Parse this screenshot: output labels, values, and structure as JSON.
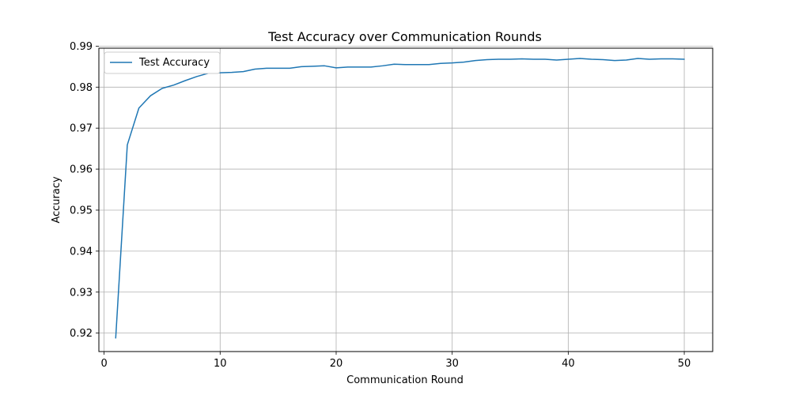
{
  "chart_data": {
    "type": "line",
    "title": "Test Accuracy over Communication Rounds",
    "xlabel": "Communication Round",
    "ylabel": "Accuracy",
    "xlim": [
      -0.45,
      52.45
    ],
    "ylim": [
      0.9155,
      0.9895
    ],
    "xticks": [
      0,
      10,
      20,
      30,
      40,
      50
    ],
    "yticks": [
      0.92,
      0.93,
      0.94,
      0.95,
      0.96,
      0.97,
      0.98,
      0.99
    ],
    "ytick_labels": [
      "0.92",
      "0.93",
      "0.94",
      "0.95",
      "0.96",
      "0.97",
      "0.98",
      "0.99"
    ],
    "grid": true,
    "legend_position": "upper-left",
    "color": "#1f77b4",
    "series": [
      {
        "name": "Test Accuracy",
        "x": [
          1,
          2,
          3,
          4,
          5,
          6,
          7,
          8,
          9,
          10,
          11,
          12,
          13,
          14,
          15,
          16,
          17,
          18,
          19,
          20,
          21,
          22,
          23,
          24,
          25,
          26,
          27,
          28,
          29,
          30,
          31,
          32,
          33,
          34,
          35,
          36,
          37,
          38,
          39,
          40,
          41,
          42,
          43,
          44,
          45,
          46,
          47,
          48,
          49,
          50
        ],
        "y": [
          0.9188,
          0.9659,
          0.9749,
          0.9779,
          0.9797,
          0.9805,
          0.9816,
          0.9826,
          0.9834,
          0.9835,
          0.9836,
          0.9838,
          0.9844,
          0.9846,
          0.9846,
          0.9846,
          0.985,
          0.9851,
          0.9852,
          0.9847,
          0.9849,
          0.9849,
          0.9849,
          0.9852,
          0.9856,
          0.9855,
          0.9855,
          0.9855,
          0.9858,
          0.9859,
          0.9861,
          0.9865,
          0.9867,
          0.9868,
          0.9868,
          0.9869,
          0.9868,
          0.9868,
          0.9866,
          0.9868,
          0.987,
          0.9868,
          0.9867,
          0.9865,
          0.9866,
          0.987,
          0.9868,
          0.9869,
          0.9869,
          0.9868
        ]
      }
    ]
  }
}
